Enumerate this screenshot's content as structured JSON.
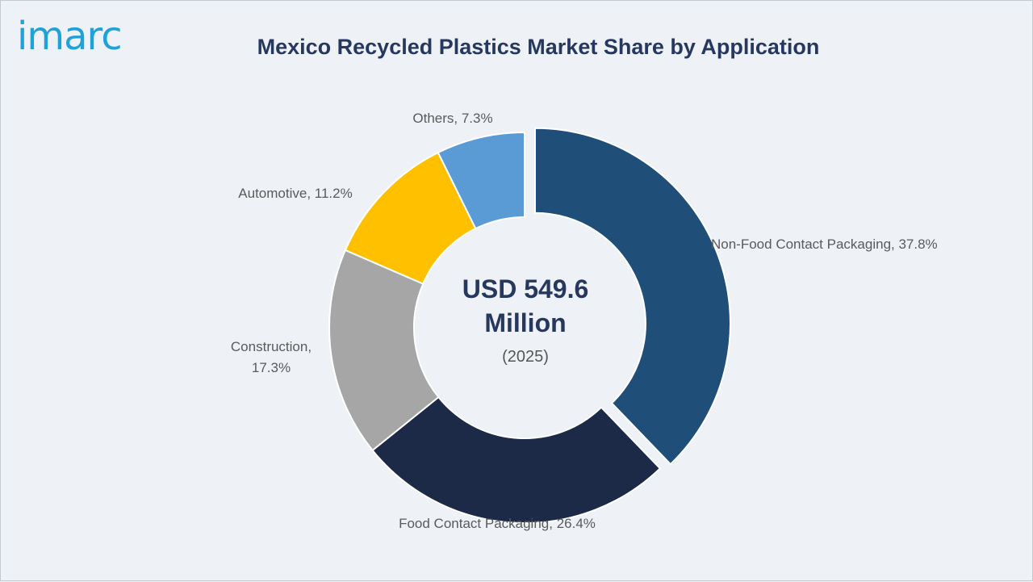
{
  "brand": {
    "logo_text": "imarc"
  },
  "title": "Mexico Recycled Plastics Market Share by Application",
  "chart_data": {
    "type": "pie",
    "style": "donut",
    "title": "Mexico Recycled Plastics Market Share by Application",
    "unit": "%",
    "center": {
      "value": "USD 549.6 Million",
      "year": "(2025)"
    },
    "slices": [
      {
        "name": "Non-Food Contact Packaging",
        "value": 37.8,
        "color": "#1f4e79",
        "exploded": true,
        "label": "Non-Food Contact Packaging, 37.8%"
      },
      {
        "name": "Food Contact Packaging",
        "value": 26.4,
        "color": "#1c2a48",
        "exploded": false,
        "label": "Food Contact Packaging, 26.4%"
      },
      {
        "name": "Construction",
        "value": 17.3,
        "color": "#a6a6a6",
        "exploded": false,
        "label": "Construction, 17.3%"
      },
      {
        "name": "Automotive",
        "value": 11.2,
        "color": "#ffc000",
        "exploded": false,
        "label": "Automotive, 11.2%"
      },
      {
        "name": "Others",
        "value": 7.3,
        "color": "#5b9bd5",
        "exploded": false,
        "label": "Others, 7.3%"
      }
    ]
  }
}
